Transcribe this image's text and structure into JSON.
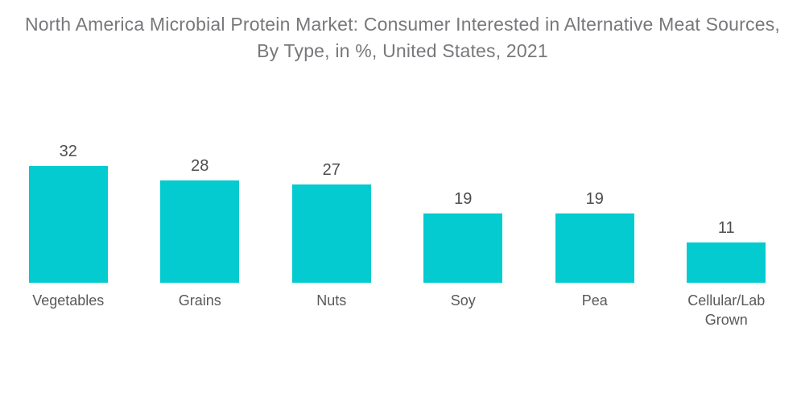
{
  "header": {
    "title_lines": [
      "North America Microbial Protein Market: Consumer Interested in Alternative Meat Sources,",
      "By Type, in %, United States, 2021"
    ]
  },
  "chart_data": {
    "type": "bar",
    "title": "North America Microbial Protein Market: Consumer Interested in Alternative Meat Sources, By Type, in %, United States, 2021",
    "unit": "%",
    "categories": [
      "Vegetables",
      "Grains",
      "Nuts",
      "Soy",
      "Pea",
      "Cellular/Lab Grown"
    ],
    "values": [
      32,
      28,
      27,
      19,
      19,
      11
    ],
    "xlabel": "",
    "ylabel": "",
    "ylim": [
      0,
      35
    ],
    "grid": false,
    "legend": false,
    "axes_shown": false,
    "value_labels_shown": true,
    "bar_color": "#04CBD0"
  },
  "colors": {
    "background": "#ffffff",
    "bar": "#04CBD0",
    "title_text": "#77787B",
    "value_text": "#4D4D4F",
    "category_text": "#58595B"
  }
}
